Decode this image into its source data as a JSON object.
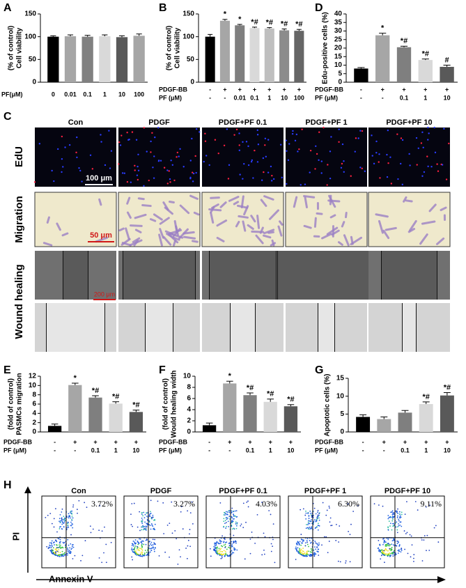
{
  "chart_data": [
    {
      "type": "bar",
      "panel": "A",
      "y_label": [
        "Cell viability",
        "(% of control)"
      ],
      "ylim": [
        0,
        150
      ],
      "yticks": [
        0,
        50,
        100,
        150
      ],
      "category_rows": [
        {
          "label": "PF(μM)",
          "values": [
            "0",
            "0.01",
            "0.1",
            "1",
            "10",
            "100"
          ]
        }
      ],
      "values": [
        100,
        101,
        100,
        101,
        99,
        102
      ],
      "errors": [
        2,
        3,
        3,
        3,
        3,
        4
      ],
      "annotations": [
        null,
        null,
        null,
        null,
        null,
        null
      ],
      "colors": [
        "#000000",
        "#a6a6a6",
        "#808080",
        "#d9d9d9",
        "#595959",
        "#a6a6a6"
      ]
    },
    {
      "type": "bar",
      "panel": "B",
      "y_label": [
        "Cell viability",
        "(% of control)"
      ],
      "ylim": [
        0,
        150
      ],
      "yticks": [
        0,
        50,
        100,
        150
      ],
      "category_rows": [
        {
          "label": "PDGF-BB",
          "values": [
            "-",
            "+",
            "+",
            "+",
            "+",
            "+",
            "+"
          ]
        },
        {
          "label": "PF  (μM)",
          "values": [
            "-",
            "-",
            "0.01",
            "0.1",
            "1",
            "10",
            "100"
          ]
        }
      ],
      "values": [
        100,
        135,
        125,
        119,
        118,
        114,
        113
      ],
      "errors": [
        5,
        3,
        2,
        2,
        2,
        3,
        3
      ],
      "annotations": [
        null,
        "*",
        "*",
        "*#",
        "*#",
        "*#",
        "*#"
      ],
      "colors": [
        "#000000",
        "#a6a6a6",
        "#7f7f7f",
        "#d9d9d9",
        "#bfbfbf",
        "#8c8c8c",
        "#666666"
      ]
    },
    {
      "type": "bar",
      "panel": "D",
      "y_label": [
        "Edu-positive cells (%)"
      ],
      "ylim": [
        0,
        40
      ],
      "yticks": [
        0,
        5,
        10,
        15,
        20,
        25,
        30,
        35,
        40
      ],
      "category_rows": [
        {
          "label": "PDGF-BB",
          "values": [
            "-",
            "+",
            "+",
            "+",
            "+"
          ]
        },
        {
          "label": "PF    (μM)",
          "values": [
            "-",
            "-",
            "0.1",
            "1",
            "10"
          ]
        }
      ],
      "values": [
        8,
        27.5,
        20.5,
        13,
        9
      ],
      "errors": [
        0.6,
        1.2,
        0.6,
        0.6,
        1
      ],
      "annotations": [
        null,
        "*",
        "*#",
        "*#",
        "#"
      ],
      "colors": [
        "#000000",
        "#a6a6a6",
        "#7f7f7f",
        "#d9d9d9",
        "#595959"
      ]
    },
    {
      "type": "bar",
      "panel": "E",
      "y_label": [
        "PASMCs migration",
        "(fold of control)"
      ],
      "ylim": [
        0,
        12
      ],
      "yticks": [
        0,
        2,
        4,
        6,
        8,
        10,
        12
      ],
      "category_rows": [
        {
          "label": "PDGF-BB",
          "values": [
            "-",
            "+",
            "+",
            "+",
            "+"
          ]
        },
        {
          "label": "PF  (μM)",
          "values": [
            "-",
            "-",
            "0.1",
            "1",
            "10"
          ]
        }
      ],
      "values": [
        1.3,
        10.1,
        7.4,
        6.1,
        4.3
      ],
      "errors": [
        0.4,
        0.4,
        0.4,
        0.4,
        0.4
      ],
      "annotations": [
        null,
        "*",
        "*#",
        "*#",
        "*#"
      ],
      "colors": [
        "#000000",
        "#a6a6a6",
        "#7f7f7f",
        "#d9d9d9",
        "#595959"
      ]
    },
    {
      "type": "bar",
      "panel": "F",
      "y_label": [
        "Would healing width",
        "(fold of control)"
      ],
      "ylim": [
        0,
        10
      ],
      "yticks": [
        0,
        2,
        4,
        6,
        8,
        10
      ],
      "category_rows": [
        {
          "label": "PDGF-BB",
          "values": [
            "-",
            "+",
            "+",
            "+",
            "+"
          ]
        },
        {
          "label": "PF  (μM)",
          "values": [
            "-",
            "-",
            "0.1",
            "1",
            "10"
          ]
        }
      ],
      "values": [
        1.2,
        8.7,
        6.6,
        5.4,
        4.6
      ],
      "errors": [
        0.4,
        0.4,
        0.4,
        0.5,
        0.3
      ],
      "annotations": [
        null,
        "*",
        "*#",
        "*#",
        "*#"
      ],
      "colors": [
        "#000000",
        "#a6a6a6",
        "#7f7f7f",
        "#d9d9d9",
        "#595959"
      ]
    },
    {
      "type": "bar",
      "panel": "G",
      "y_label": [
        "Apoptotic cells (%)"
      ],
      "ylim": [
        0,
        15
      ],
      "yticks": [
        0,
        5,
        10,
        15
      ],
      "category_rows": [
        {
          "label": "PDGF-BB",
          "values": [
            "-",
            "+",
            "+",
            "+",
            "+"
          ]
        },
        {
          "label": "PF  (μM)",
          "values": [
            "-",
            "-",
            "0.1",
            "1",
            "10"
          ]
        }
      ],
      "values": [
        4.2,
        3.6,
        5.4,
        7.8,
        10.2
      ],
      "errors": [
        0.6,
        0.6,
        0.6,
        0.6,
        0.8
      ],
      "annotations": [
        null,
        null,
        null,
        "*#",
        "*#"
      ],
      "colors": [
        "#000000",
        "#a6a6a6",
        "#7f7f7f",
        "#d9d9d9",
        "#595959"
      ]
    }
  ],
  "image_panel": {
    "label": "C",
    "columns": [
      "Con",
      "PDGF",
      "PDGF+PF 0.1",
      "PDGF+PF 1",
      "PDGF+PF 10"
    ],
    "rows": [
      "EdU",
      "Migration",
      "Wound healing"
    ],
    "scale_bars": [
      "100 μm",
      "50 μm",
      "200 μm"
    ]
  },
  "flow_panel": {
    "label": "H",
    "columns": [
      "Con",
      "PDGF",
      "PDGF+PF 0.1",
      "PDGF+PF 1",
      "PDGF+PF 10"
    ],
    "percents": [
      "3.72%",
      "3.27%",
      "4.03%",
      "6.30%",
      "9.11%"
    ],
    "y_label": "PI",
    "x_label": "Annexin V"
  }
}
